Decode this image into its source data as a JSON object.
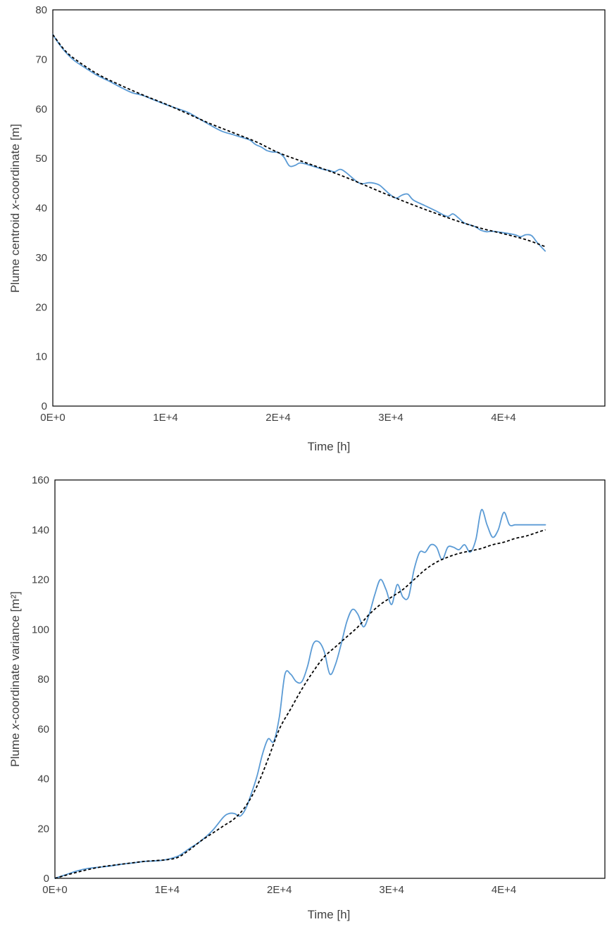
{
  "chart_data": [
    {
      "type": "line",
      "title": "",
      "xlabel": "Time [h]",
      "ylabel": {
        "pre": "Plume centroid ",
        "italic": "x",
        "post": "-coordinate [m]"
      },
      "xlim": [
        0,
        44000
      ],
      "ylim": [
        0,
        80
      ],
      "x_ticks": [
        0,
        10000,
        20000,
        30000,
        40000
      ],
      "x_tick_labels": [
        "0E+0",
        "1E+4",
        "2E+4",
        "3E+4",
        "4E+4"
      ],
      "y_ticks": [
        0,
        10,
        20,
        30,
        40,
        50,
        60,
        70,
        80
      ],
      "y_tick_labels": [
        "0",
        "10",
        "20",
        "30",
        "40",
        "50",
        "60",
        "70",
        "80"
      ],
      "grid": false,
      "legend": "none",
      "series": [
        {
          "style": "solid",
          "color": "#5B9BD5",
          "x": [
            0,
            500,
            1000,
            1500,
            2000,
            3000,
            4000,
            5000,
            6000,
            7000,
            8000,
            9000,
            10000,
            11000,
            12000,
            13000,
            14000,
            15000,
            16000,
            17000,
            17500,
            18000,
            18500,
            19000,
            19500,
            20000,
            20500,
            21000,
            21500,
            22000,
            23000,
            24000,
            24500,
            25000,
            25500,
            26000,
            27000,
            27500,
            28000,
            28500,
            29000,
            29500,
            30000,
            30500,
            31000,
            31500,
            32000,
            33000,
            34000,
            35000,
            35500,
            36000,
            36500,
            37000,
            37500,
            38000,
            38500,
            39000,
            40000,
            41000,
            41500,
            42000,
            42500,
            43000,
            43700
          ],
          "y": [
            75,
            73.3,
            71.8,
            70.6,
            69.6,
            68.1,
            66.7,
            65.6,
            64.4,
            63.3,
            62.7,
            61.8,
            60.9,
            60.1,
            59.3,
            58.0,
            56.7,
            55.5,
            54.8,
            54.1,
            53.7,
            52.8,
            52.3,
            51.6,
            51.3,
            51.2,
            50.3,
            48.5,
            48.6,
            49.1,
            48.5,
            47.8,
            47.6,
            47.3,
            47.8,
            47.2,
            45.3,
            44.9,
            45.1,
            45.0,
            44.6,
            43.6,
            42.6,
            42.0,
            42.6,
            42.8,
            41.6,
            40.5,
            39.4,
            38.3,
            38.8,
            38.0,
            37.0,
            36.6,
            36.2,
            35.5,
            35.2,
            35.3,
            35.0,
            34.6,
            34.2,
            34.6,
            34.4,
            33.0,
            31.3
          ]
        },
        {
          "style": "dashed",
          "color": "#000000",
          "x": [
            0,
            1000,
            2000,
            4000,
            6000,
            8000,
            10000,
            12000,
            14000,
            16000,
            18000,
            20000,
            22000,
            24000,
            26000,
            28000,
            30000,
            32000,
            34000,
            36000,
            38000,
            40000,
            42000,
            43700
          ],
          "y": [
            75,
            72,
            70,
            67,
            64.8,
            62.8,
            61,
            59,
            57,
            55.2,
            53.4,
            51.2,
            49.5,
            47.9,
            46.2,
            44.3,
            42.4,
            40.6,
            38.9,
            37.3,
            35.9,
            34.8,
            33.6,
            32.2
          ]
        }
      ]
    },
    {
      "type": "line",
      "title": "",
      "xlabel": "Time [h]",
      "ylabel": {
        "pre": "Plume ",
        "italic": "x",
        "post": "-coordinate variance [m²]"
      },
      "xlim": [
        0,
        44000
      ],
      "ylim": [
        0,
        160
      ],
      "x_ticks": [
        0,
        10000,
        20000,
        30000,
        40000
      ],
      "x_tick_labels": [
        "0E+0",
        "1E+4",
        "2E+4",
        "3E+4",
        "4E+4"
      ],
      "y_ticks": [
        0,
        20,
        40,
        60,
        80,
        100,
        120,
        140,
        160
      ],
      "y_tick_labels": [
        "0",
        "20",
        "40",
        "60",
        "80",
        "100",
        "120",
        "140",
        "160"
      ],
      "grid": false,
      "legend": "none",
      "series": [
        {
          "style": "solid",
          "color": "#5B9BD5",
          "x": [
            0,
            1000,
            2000,
            3000,
            4000,
            5000,
            6000,
            7000,
            8000,
            9000,
            10000,
            11000,
            12000,
            13000,
            14000,
            15000,
            15500,
            16000,
            16500,
            17000,
            17500,
            18000,
            18500,
            19000,
            19500,
            20000,
            20500,
            21000,
            21500,
            22000,
            22500,
            23000,
            23500,
            24000,
            24500,
            25000,
            25500,
            26000,
            26500,
            27000,
            27500,
            28000,
            28500,
            29000,
            29500,
            30000,
            30500,
            31000,
            31500,
            32000,
            32500,
            33000,
            33500,
            34000,
            34500,
            35000,
            35500,
            36000,
            36500,
            37000,
            37500,
            38000,
            38500,
            39000,
            39500,
            40000,
            40500,
            41000,
            41500,
            42000,
            42500,
            43000,
            43700
          ],
          "y": [
            0,
            1.5,
            3,
            4,
            4.5,
            5,
            5.7,
            6.2,
            6.8,
            7.0,
            7.6,
            9.0,
            12.0,
            15.0,
            19.0,
            24.5,
            26.0,
            26.0,
            25.0,
            28.0,
            34.0,
            41.0,
            50.0,
            56.0,
            55.0,
            65.0,
            82.0,
            82.0,
            79.0,
            79.0,
            85.0,
            94.0,
            95.0,
            91.0,
            82.0,
            86.0,
            94.0,
            103.0,
            108.0,
            106.0,
            101.0,
            106.0,
            114.0,
            120.0,
            116.0,
            110.0,
            118.0,
            113.0,
            113.0,
            124.0,
            131.0,
            131.0,
            134.0,
            133.0,
            128.0,
            133.0,
            133.0,
            132.0,
            134.0,
            131.0,
            136.0,
            148.0,
            142.0,
            137.0,
            140.0,
            147.0,
            142.0,
            142.0,
            142.0,
            142.0,
            142.0,
            142.0,
            142.0
          ]
        },
        {
          "style": "dashed",
          "color": "#000000",
          "x": [
            0,
            2000,
            4000,
            6000,
            8000,
            10000,
            11000,
            12000,
            13000,
            14000,
            15000,
            16000,
            17000,
            18000,
            19000,
            20000,
            21000,
            22000,
            23000,
            24000,
            25000,
            26000,
            27000,
            28000,
            29000,
            30000,
            31000,
            32000,
            33000,
            34000,
            35000,
            36000,
            37000,
            38000,
            39000,
            40000,
            41000,
            42000,
            43000,
            43700
          ],
          "y": [
            0,
            2.5,
            4.5,
            5.7,
            6.8,
            7.5,
            8.5,
            11.5,
            15.0,
            18.0,
            21.0,
            24.0,
            29.0,
            37.0,
            48.0,
            60.0,
            68.0,
            76.0,
            83.0,
            89.0,
            93.0,
            97.0,
            101.0,
            106.0,
            110.0,
            113.0,
            116.0,
            120.0,
            124.0,
            127.0,
            129.0,
            130.5,
            131.5,
            132.5,
            134.0,
            135.0,
            136.5,
            137.5,
            139.0,
            140.0
          ]
        }
      ]
    }
  ]
}
